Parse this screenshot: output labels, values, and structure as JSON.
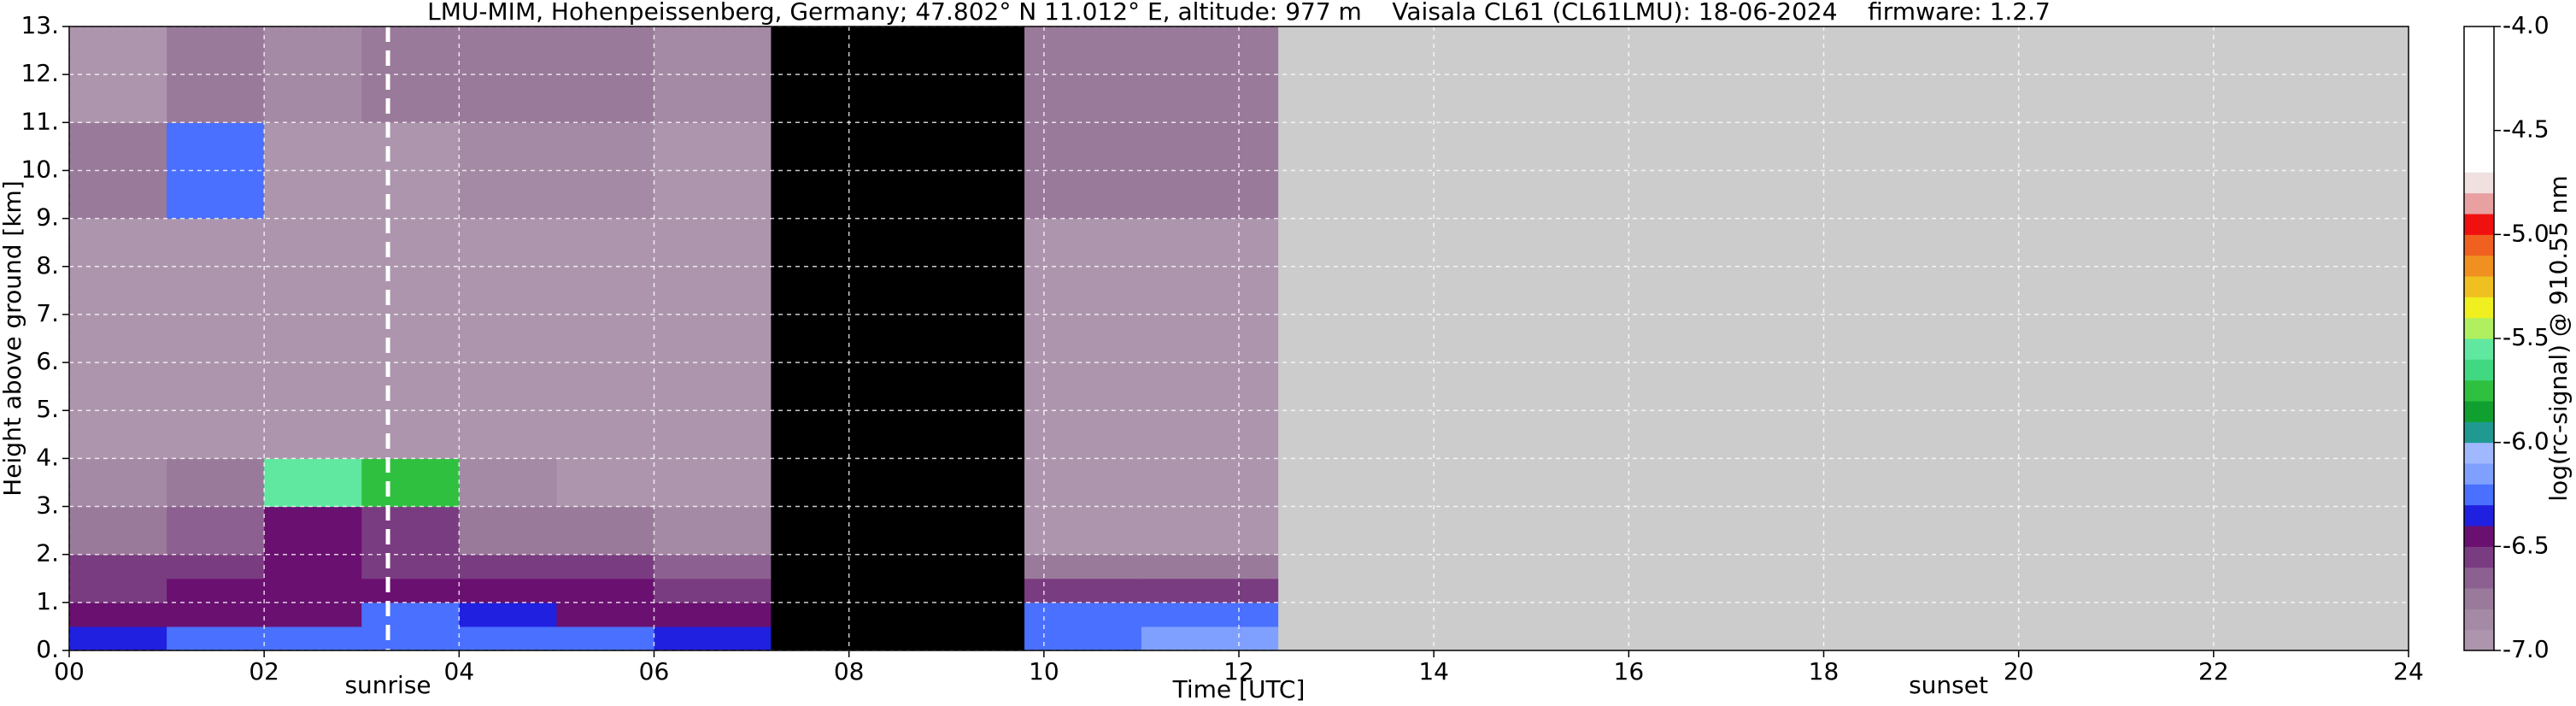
{
  "chart_data": {
    "type": "heatmap",
    "title": "LMU-MIM, Hohenpeissenberg, Germany; 47.802° N 11.012° E, altitude: 977 m    Vaisala CL61 (CL61LMU): 18-06-2024    firmware: 1.2.7",
    "x_label": "Time [UTC]",
    "y_label": "Height above ground [km]",
    "colorbar_label": "log(rc-signal) @ 910.55 nm",
    "xlim": [
      0,
      24
    ],
    "ylim": [
      0,
      13
    ],
    "xticks": [
      {
        "value": 0,
        "label": "00"
      },
      {
        "value": 2,
        "label": "02"
      },
      {
        "value": 4,
        "label": "04"
      },
      {
        "value": 6,
        "label": "06"
      },
      {
        "value": 8,
        "label": "08"
      },
      10,
      12,
      14,
      16,
      18,
      20,
      22,
      24
    ],
    "yticks": [
      {
        "value": 0,
        "label": "0."
      },
      {
        "value": 1,
        "label": "1."
      },
      {
        "value": 2,
        "label": "2."
      },
      {
        "value": 3,
        "label": "3."
      },
      {
        "value": 4,
        "label": "4."
      },
      {
        "value": 5,
        "label": "5."
      },
      {
        "value": 6,
        "label": "6."
      },
      {
        "value": 7,
        "label": "7."
      },
      {
        "value": 8,
        "label": "8."
      },
      {
        "value": 9,
        "label": "9."
      },
      {
        "value": 10,
        "label": "10."
      },
      {
        "value": 11,
        "label": "11."
      },
      {
        "value": 12,
        "label": "12."
      },
      {
        "value": 13,
        "label": "13."
      }
    ],
    "grid": true,
    "x_bins": [
      0,
      1,
      2,
      3,
      4,
      5,
      6,
      7.2,
      9.8,
      11,
      12.4
    ],
    "y_bins": [
      0,
      0.5,
      1,
      1.5,
      2,
      3,
      4,
      6,
      9,
      11,
      13
    ],
    "values": [
      [
        -6.35,
        -6.3,
        -6.3,
        -6.2,
        -6.25,
        -6.3,
        -6.35,
        null,
        -6.2,
        -6.15
      ],
      [
        -6.45,
        -6.4,
        -6.4,
        -6.3,
        -6.35,
        -6.4,
        -6.45,
        null,
        -6.3,
        -6.3
      ],
      [
        -6.55,
        -6.5,
        -6.5,
        -6.45,
        -6.5,
        -6.5,
        -6.55,
        null,
        -6.55,
        -6.6
      ],
      [
        -6.6,
        -6.55,
        -6.5,
        -6.55,
        -6.6,
        -6.6,
        -6.65,
        null,
        -6.8,
        -6.8
      ],
      [
        -6.7,
        -6.65,
        -6.4,
        -6.6,
        -6.75,
        -6.8,
        -6.85,
        null,
        -6.9,
        -6.9
      ],
      [
        -6.85,
        -6.8,
        -5.6,
        -5.8,
        -6.85,
        -6.9,
        -6.9,
        null,
        -6.95,
        -6.95
      ],
      [
        -6.95,
        -6.95,
        -6.95,
        -6.95,
        -6.95,
        -6.95,
        -6.95,
        null,
        -6.95,
        -6.95
      ],
      [
        -6.95,
        -6.95,
        -6.95,
        -6.95,
        -6.95,
        -6.95,
        -6.95,
        null,
        -6.9,
        -6.9
      ],
      [
        -6.75,
        -6.3,
        -6.9,
        -6.9,
        -6.85,
        -6.85,
        -6.9,
        null,
        -6.7,
        -6.8
      ],
      [
        -6.9,
        -6.8,
        -6.85,
        -6.8,
        -6.7,
        -6.75,
        -6.85,
        null,
        -6.7,
        -6.75
      ]
    ],
    "missing_color": "#000000",
    "background": "#cccccc",
    "clim": [
      -7,
      -4
    ],
    "colors": [
      "#ad96ad",
      "#a48aa4",
      "#9a7a9b",
      "#8c6090",
      "#7a3c80",
      "#6a1070",
      "#2020e0",
      "#4a70ff",
      "#7fa0ff",
      "#a0b8ff",
      "#209a90",
      "#10a030",
      "#30c040",
      "#40d880",
      "#60e8a0",
      "#b0f060",
      "#f0f020",
      "#f0c020",
      "#f09020",
      "#f06020",
      "#f01010",
      "#e8a0a0",
      "#f0e0e0",
      "#ffffff",
      "#ffffff",
      "#ffffff",
      "#ffffff",
      "#ffffff",
      "#ffffff",
      "#ffffff"
    ],
    "cticks": [
      {
        "value": -7,
        "label": "-7.0"
      },
      -6.5,
      {
        "value": -6,
        "label": "-6.0"
      },
      -5.5,
      {
        "value": -5,
        "label": "-5.0"
      },
      -4.5,
      {
        "value": -4,
        "label": "-4.0"
      }
    ],
    "markers": [
      {
        "label": "sunrise",
        "x": 3.27,
        "line": true
      },
      {
        "label": "sunset",
        "x": 19.28,
        "line": false
      }
    ]
  }
}
